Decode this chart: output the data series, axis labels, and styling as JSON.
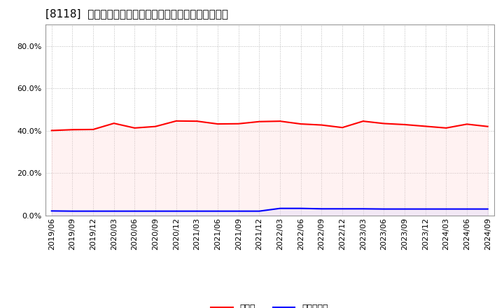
{
  "title": "[8118]  現預金、有利子負債の総資産に対する比率の推移",
  "x_labels": [
    "2019/06",
    "2019/09",
    "2019/12",
    "2020/03",
    "2020/06",
    "2020/09",
    "2020/12",
    "2021/03",
    "2021/06",
    "2021/09",
    "2021/12",
    "2022/03",
    "2022/06",
    "2022/09",
    "2022/12",
    "2023/03",
    "2023/06",
    "2023/09",
    "2023/12",
    "2024/03",
    "2024/06",
    "2024/09"
  ],
  "cash_ratio": [
    0.401,
    0.405,
    0.406,
    0.435,
    0.413,
    0.42,
    0.446,
    0.445,
    0.432,
    0.433,
    0.443,
    0.445,
    0.432,
    0.427,
    0.415,
    0.445,
    0.434,
    0.429,
    0.421,
    0.413,
    0.431,
    0.42
  ],
  "debt_ratio": [
    0.022,
    0.021,
    0.021,
    0.021,
    0.021,
    0.021,
    0.021,
    0.021,
    0.021,
    0.021,
    0.021,
    0.034,
    0.034,
    0.032,
    0.032,
    0.032,
    0.031,
    0.031,
    0.031,
    0.031,
    0.031,
    0.031
  ],
  "cash_color": "#ff0000",
  "debt_color": "#0000ff",
  "cash_fill_color": "#ffcccc",
  "debt_fill_color": "#ccccff",
  "bg_color": "#ffffff",
  "plot_bg_color": "#ffffff",
  "grid_color": "#aaaaaa",
  "ylim": [
    0.0,
    0.9
  ],
  "yticks": [
    0.0,
    0.2,
    0.4,
    0.6,
    0.8
  ],
  "legend_cash": "現預金",
  "legend_debt": "有利子負債",
  "title_fontsize": 11,
  "axis_fontsize": 8,
  "legend_fontsize": 9
}
